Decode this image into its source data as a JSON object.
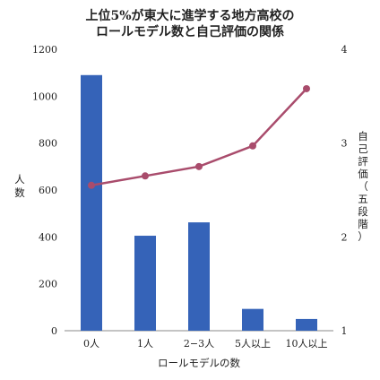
{
  "chart_data": {
    "type": "bar+line",
    "title": [
      "上位5%が東大に進学する地方高校の",
      "ロールモデル数と自己評価の関係"
    ],
    "xlabel": "ロールモデルの数",
    "ylabel_left": "人数",
    "ylabel_right": "自己評価（五段階）",
    "categories": [
      "0人",
      "1人",
      "2−3人",
      "5人以上",
      "10人以上"
    ],
    "left_axis": {
      "min": 0,
      "max": 1200,
      "ticks": [
        "0",
        "200",
        "400",
        "600",
        "800",
        "1000",
        "1200"
      ]
    },
    "right_axis": {
      "min": 1,
      "max": 4,
      "ticks": [
        "1",
        "2",
        "3",
        "4"
      ]
    },
    "series": [
      {
        "type": "bar",
        "axis": "left",
        "color": "#3563b8",
        "values": [
          1090,
          405,
          462,
          93,
          50
        ]
      },
      {
        "type": "line",
        "axis": "right",
        "color": "#a94c6c",
        "values": [
          2.55,
          2.65,
          2.75,
          2.97,
          3.58
        ]
      }
    ],
    "grid": false,
    "legend": "none"
  }
}
